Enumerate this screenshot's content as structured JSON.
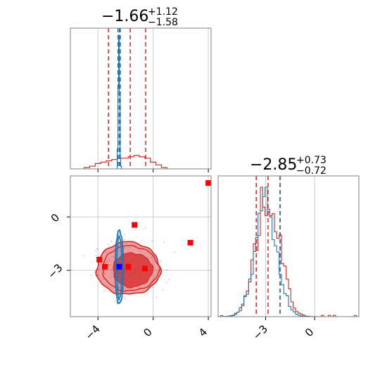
{
  "colors": {
    "red": "#d62728",
    "red_marker": "#ff0000",
    "blue": "#1f77b4",
    "blue_marker": "#0000ff",
    "frame": "#808080",
    "grid": "#cccccc"
  },
  "chart_data": [
    {
      "type": "histogram",
      "panel": "param1-marginal",
      "title": {
        "value": "−1.66",
        "plus": "+1.12",
        "minus": "−1.58"
      },
      "xlim": [
        -6,
        4.2
      ],
      "x_ticks": [
        -4,
        0,
        4
      ],
      "grid": true,
      "series": [
        {
          "color": "red",
          "quantile_lines": [
            -3.24,
            -1.66,
            -0.54
          ],
          "bin_edges": [
            -5.0,
            -4.6,
            -4.2,
            -3.8,
            -3.4,
            -3.0,
            -2.6,
            -2.2,
            -1.8,
            -1.4,
            -1.0,
            -0.6,
            -0.2,
            0.2,
            0.6,
            1.0
          ],
          "heights": [
            0.01,
            0.02,
            0.04,
            0.05,
            0.06,
            0.07,
            0.08,
            0.08,
            0.09,
            0.1,
            0.09,
            0.08,
            0.05,
            0.03,
            0.01
          ]
        },
        {
          "color": "blue",
          "quantile_lines": [
            -2.55,
            -2.45,
            -2.38
          ],
          "bin_edges": [
            -2.6,
            -2.55,
            -2.5,
            -2.45,
            -2.4,
            -2.35,
            -2.3
          ],
          "heights": [
            0.15,
            0.6,
            1.0,
            0.55,
            0.08,
            0.02
          ]
        }
      ]
    },
    {
      "type": "histogram",
      "panel": "param2-marginal",
      "title": {
        "value": "−2.85",
        "plus": "+0.73",
        "minus": "−0.72"
      },
      "xlim": [
        -5.9,
        2.7
      ],
      "x_ticks": [
        -3,
        0
      ],
      "grid": true,
      "series": [
        {
          "color": "red",
          "quantile_lines": [
            -3.57,
            -2.85,
            -2.12
          ]
        },
        {
          "color": "blue",
          "quantile_lines": [
            -2.1
          ]
        }
      ]
    },
    {
      "type": "contour",
      "panel": "joint",
      "xlim": [
        -6,
        4.2
      ],
      "ylim": [
        -5.6,
        2.3
      ],
      "x_ticks": [
        -4,
        0,
        4
      ],
      "y_ticks": [
        0,
        -3
      ],
      "grid": true,
      "red_region": {
        "center": [
          -1.8,
          -2.9
        ],
        "half_widths": [
          2.3,
          1.4
        ]
      },
      "blue_region": {
        "center": [
          -2.45,
          -2.85
        ],
        "half_widths": [
          0.3,
          2.05
        ]
      },
      "red_markers": [
        [
          4.0,
          1.9
        ],
        [
          -1.35,
          -0.45
        ],
        [
          2.7,
          -1.45
        ],
        [
          -3.5,
          -2.8
        ],
        [
          -1.8,
          -2.8
        ],
        [
          -0.6,
          -2.9
        ],
        [
          -3.9,
          -2.4
        ]
      ],
      "blue_marker": [
        -2.45,
        -2.8
      ]
    }
  ]
}
